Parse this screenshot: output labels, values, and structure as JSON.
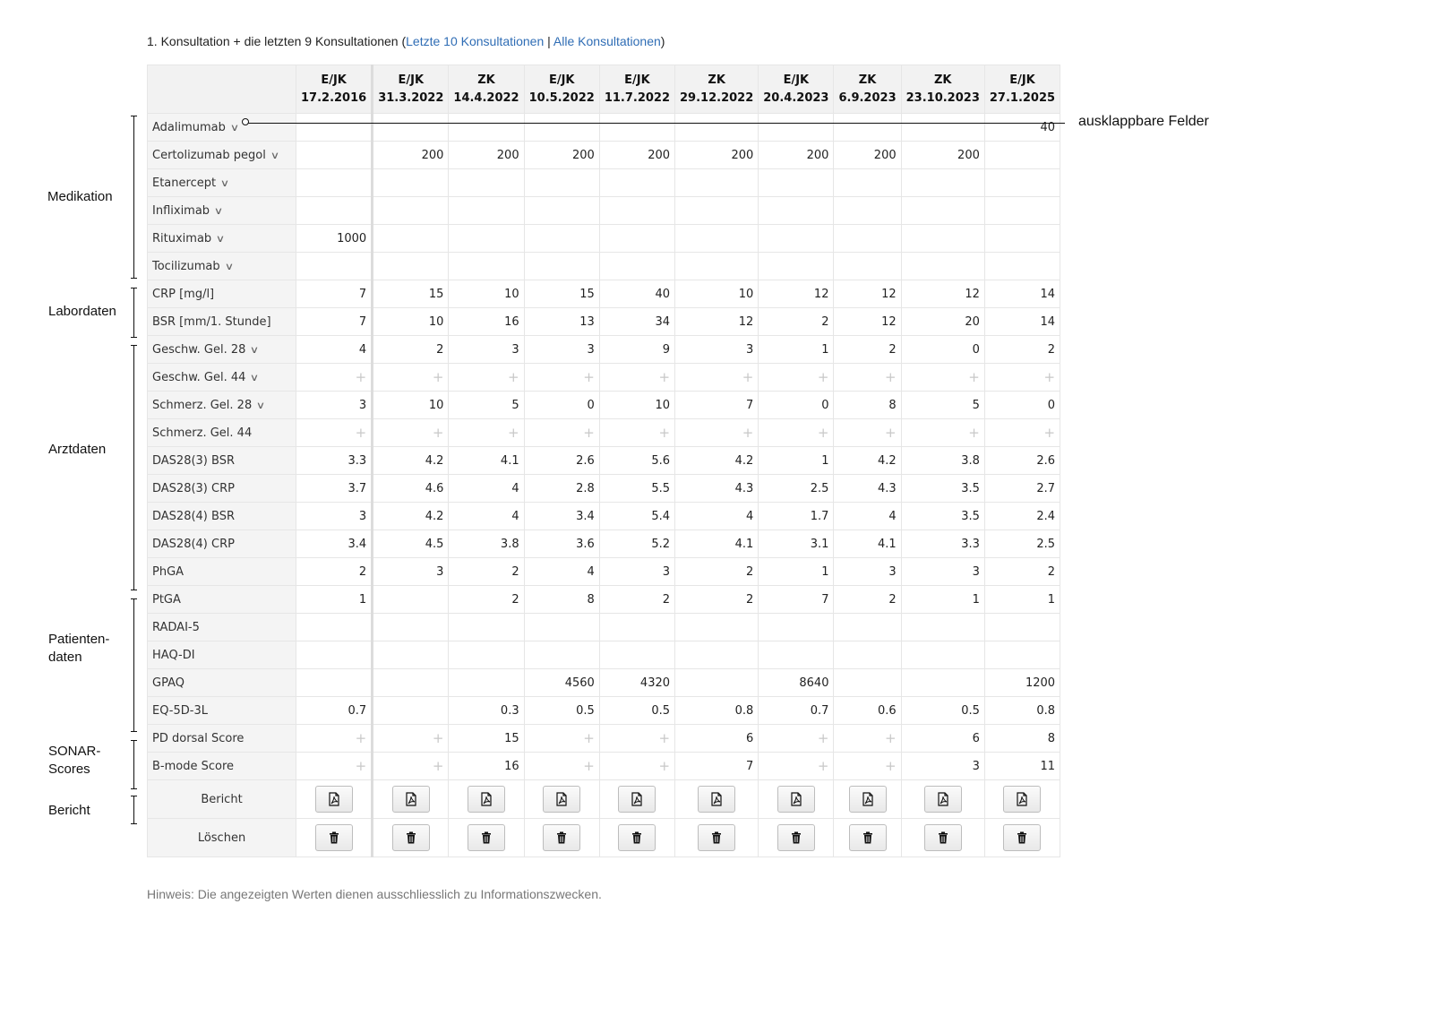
{
  "intro": {
    "prefix": "1. Konsultation + die letzten 9 Konsultationen (",
    "link1": "Letzte 10 Konsultationen",
    "separator": " | ",
    "link2": "Alle Konsultationen",
    "suffix": ")"
  },
  "columns": [
    {
      "type": "E/JK",
      "date": "17.2.2016"
    },
    {
      "type": "E/JK",
      "date": "31.3.2022"
    },
    {
      "type": "ZK",
      "date": "14.4.2022"
    },
    {
      "type": "E/JK",
      "date": "10.5.2022"
    },
    {
      "type": "E/JK",
      "date": "11.7.2022"
    },
    {
      "type": "ZK",
      "date": "29.12.2022"
    },
    {
      "type": "E/JK",
      "date": "20.4.2023"
    },
    {
      "type": "ZK",
      "date": "6.9.2023"
    },
    {
      "type": "ZK",
      "date": "23.10.2023"
    },
    {
      "type": "E/JK",
      "date": "27.1.2025"
    }
  ],
  "rows": [
    {
      "label": "Adalimumab",
      "expandable": true,
      "values": [
        "",
        "",
        "",
        "",
        "",
        "",
        "",
        "",
        "",
        "40"
      ]
    },
    {
      "label": "Certolizumab pegol",
      "expandable": true,
      "values": [
        "",
        "200",
        "200",
        "200",
        "200",
        "200",
        "200",
        "200",
        "200",
        ""
      ]
    },
    {
      "label": "Etanercept",
      "expandable": true,
      "values": [
        "",
        "",
        "",
        "",
        "",
        "",
        "",
        "",
        "",
        ""
      ]
    },
    {
      "label": "Infliximab",
      "expandable": true,
      "values": [
        "",
        "",
        "",
        "",
        "",
        "",
        "",
        "",
        "",
        ""
      ]
    },
    {
      "label": "Rituximab",
      "expandable": true,
      "values": [
        "1000",
        "",
        "",
        "",
        "",
        "",
        "",
        "",
        "",
        ""
      ]
    },
    {
      "label": "Tocilizumab",
      "expandable": true,
      "values": [
        "",
        "",
        "",
        "",
        "",
        "",
        "",
        "",
        "",
        ""
      ]
    },
    {
      "label": "CRP [mg/l]",
      "expandable": false,
      "values": [
        "7",
        "15",
        "10",
        "15",
        "40",
        "10",
        "12",
        "12",
        "12",
        "14"
      ]
    },
    {
      "label": "BSR [mm/1. Stunde]",
      "expandable": false,
      "values": [
        "7",
        "10",
        "16",
        "13",
        "34",
        "12",
        "2",
        "12",
        "20",
        "14"
      ]
    },
    {
      "label": "Geschw. Gel. 28",
      "expandable": true,
      "values": [
        "4",
        "2",
        "3",
        "3",
        "9",
        "3",
        "1",
        "2",
        "0",
        "2"
      ]
    },
    {
      "label": "Geschw. Gel. 44",
      "expandable": true,
      "values": [
        "+",
        "+",
        "+",
        "+",
        "+",
        "+",
        "+",
        "+",
        "+",
        "+"
      ]
    },
    {
      "label": "Schmerz. Gel. 28",
      "expandable": true,
      "values": [
        "3",
        "10",
        "5",
        "0",
        "10",
        "7",
        "0",
        "8",
        "5",
        "0"
      ]
    },
    {
      "label": "Schmerz. Gel. 44",
      "expandable": false,
      "values": [
        "+",
        "+",
        "+",
        "+",
        "+",
        "+",
        "+",
        "+",
        "+",
        "+"
      ]
    },
    {
      "label": "DAS28(3) BSR",
      "expandable": false,
      "values": [
        "3.3",
        "4.2",
        "4.1",
        "2.6",
        "5.6",
        "4.2",
        "1",
        "4.2",
        "3.8",
        "2.6"
      ]
    },
    {
      "label": "DAS28(3) CRP",
      "expandable": false,
      "values": [
        "3.7",
        "4.6",
        "4",
        "2.8",
        "5.5",
        "4.3",
        "2.5",
        "4.3",
        "3.5",
        "2.7"
      ]
    },
    {
      "label": "DAS28(4) BSR",
      "expandable": false,
      "values": [
        "3",
        "4.2",
        "4",
        "3.4",
        "5.4",
        "4",
        "1.7",
        "4",
        "3.5",
        "2.4"
      ]
    },
    {
      "label": "DAS28(4) CRP",
      "expandable": false,
      "values": [
        "3.4",
        "4.5",
        "3.8",
        "3.6",
        "5.2",
        "4.1",
        "3.1",
        "4.1",
        "3.3",
        "2.5"
      ]
    },
    {
      "label": "PhGA",
      "expandable": false,
      "values": [
        "2",
        "3",
        "2",
        "4",
        "3",
        "2",
        "1",
        "3",
        "3",
        "2"
      ]
    },
    {
      "label": "PtGA",
      "expandable": false,
      "values": [
        "1",
        "",
        "2",
        "8",
        "2",
        "2",
        "7",
        "2",
        "1",
        "1"
      ]
    },
    {
      "label": "RADAI-5",
      "expandable": false,
      "values": [
        "",
        "",
        "",
        "",
        "",
        "",
        "",
        "",
        "",
        ""
      ]
    },
    {
      "label": "HAQ-DI",
      "expandable": false,
      "values": [
        "",
        "",
        "",
        "",
        "",
        "",
        "",
        "",
        "",
        ""
      ]
    },
    {
      "label": "GPAQ",
      "expandable": false,
      "values": [
        "",
        "",
        "",
        "4560",
        "4320",
        "",
        "8640",
        "",
        "",
        "1200"
      ]
    },
    {
      "label": "EQ-5D-3L",
      "expandable": false,
      "values": [
        "0.7",
        "",
        "0.3",
        "0.5",
        "0.5",
        "0.8",
        "0.7",
        "0.6",
        "0.5",
        "0.8"
      ]
    },
    {
      "label": "PD dorsal Score",
      "expandable": false,
      "values": [
        "+",
        "+",
        "15",
        "+",
        "+",
        "6",
        "+",
        "+",
        "6",
        "8"
      ]
    },
    {
      "label": "B-mode Score",
      "expandable": false,
      "values": [
        "+",
        "+",
        "16",
        "+",
        "+",
        "7",
        "+",
        "+",
        "3",
        "11"
      ]
    }
  ],
  "actions": [
    {
      "label": "Bericht",
      "icon": "pdf-icon"
    },
    {
      "label": "Löschen",
      "icon": "trash-icon"
    }
  ],
  "groups": [
    {
      "label": "Medikation"
    },
    {
      "label": "Labordaten"
    },
    {
      "label": "Arztdaten"
    },
    {
      "label": "Patienten-\ndaten"
    },
    {
      "label": "SONAR-\nScores"
    },
    {
      "label": "Bericht"
    }
  ],
  "callout": "ausklappbare Felder",
  "hint": "Hinweis: Die angezeigten Werten dienen ausschliesslich zu Informationszwecken."
}
